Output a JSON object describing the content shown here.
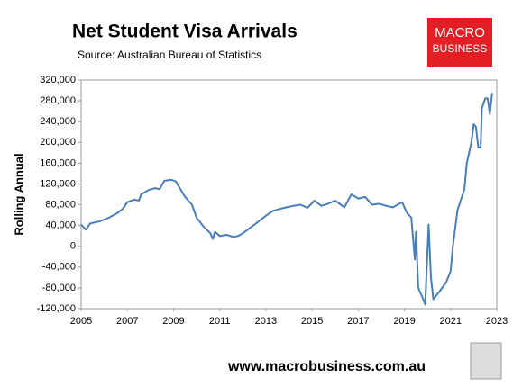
{
  "chart_data": {
    "type": "line",
    "title": "Net Student Visa Arrivals",
    "subtitle": "Source: Australian Bureau of Statistics",
    "y_label": "Rolling Annual",
    "xlim": [
      2005,
      2023
    ],
    "xticks": [
      2005,
      2007,
      2009,
      2011,
      2013,
      2015,
      2017,
      2019,
      2021,
      2023
    ],
    "ylim": [
      -120000,
      320000
    ],
    "yticks": [
      {
        "value": -120000,
        "label": "-120,000"
      },
      {
        "value": -80000,
        "label": "-80,000"
      },
      {
        "value": -40000,
        "label": "-40,000"
      },
      0,
      {
        "value": 40000,
        "label": "40,000"
      },
      {
        "value": 80000,
        "label": "80,000"
      },
      {
        "value": 120000,
        "label": "120,000"
      },
      {
        "value": 160000,
        "label": "160,000"
      },
      {
        "value": 200000,
        "label": "200,000"
      },
      {
        "value": 240000,
        "label": "240,000"
      },
      {
        "value": 280000,
        "label": "280,000"
      },
      {
        "value": 320000,
        "label": "320,000"
      }
    ],
    "grid": false,
    "series": [
      {
        "name": "Net Student Visa Arrivals",
        "color": "#4a7ebb",
        "x": [
          2005.0,
          2005.2,
          2005.4,
          2005.8,
          2006.2,
          2006.6,
          2006.8,
          2007.0,
          2007.3,
          2007.5,
          2007.6,
          2007.9,
          2008.2,
          2008.4,
          2008.6,
          2008.9,
          2009.1,
          2009.3,
          2009.5,
          2009.8,
          2010.0,
          2010.3,
          2010.6,
          2010.7,
          2010.8,
          2011.0,
          2011.3,
          2011.6,
          2011.8,
          2012.0,
          2012.3,
          2012.6,
          2012.8,
          2013.1,
          2013.3,
          2013.6,
          2013.9,
          2014.2,
          2014.5,
          2014.8,
          2015.1,
          2015.4,
          2015.7,
          2016.0,
          2016.4,
          2016.7,
          2017.0,
          2017.3,
          2017.6,
          2017.9,
          2018.2,
          2018.5,
          2018.9,
          2019.1,
          2019.3,
          2019.45,
          2019.5,
          2019.6,
          2019.8,
          2019.9,
          2020.05,
          2020.15,
          2020.25,
          2020.5,
          2020.8,
          2021.0,
          2021.1,
          2021.3,
          2021.6,
          2021.7,
          2021.9,
          2022.0,
          2022.1,
          2022.2,
          2022.3,
          2022.35,
          2022.5,
          2022.6,
          2022.7,
          2022.8
        ],
        "values": [
          42000,
          32000,
          44000,
          48000,
          55000,
          65000,
          72000,
          85000,
          90000,
          88000,
          100000,
          108000,
          112000,
          110000,
          126000,
          128000,
          125000,
          110000,
          95000,
          80000,
          55000,
          38000,
          25000,
          14000,
          28000,
          20000,
          22000,
          18000,
          20000,
          25000,
          35000,
          45000,
          52000,
          62000,
          68000,
          72000,
          75000,
          78000,
          80000,
          74000,
          88000,
          78000,
          82000,
          88000,
          75000,
          100000,
          92000,
          95000,
          80000,
          82000,
          78000,
          75000,
          85000,
          65000,
          55000,
          -25000,
          28000,
          -80000,
          -100000,
          -112000,
          42000,
          -60000,
          -102000,
          -88000,
          -70000,
          -48000,
          0,
          70000,
          110000,
          160000,
          200000,
          235000,
          230000,
          190000,
          190000,
          265000,
          285000,
          285000,
          255000,
          295000
        ]
      }
    ]
  },
  "branding": {
    "logo_top": "MACRO",
    "logo_bottom": "BUSINESS",
    "footer": "www.macrobusiness.com.au"
  }
}
